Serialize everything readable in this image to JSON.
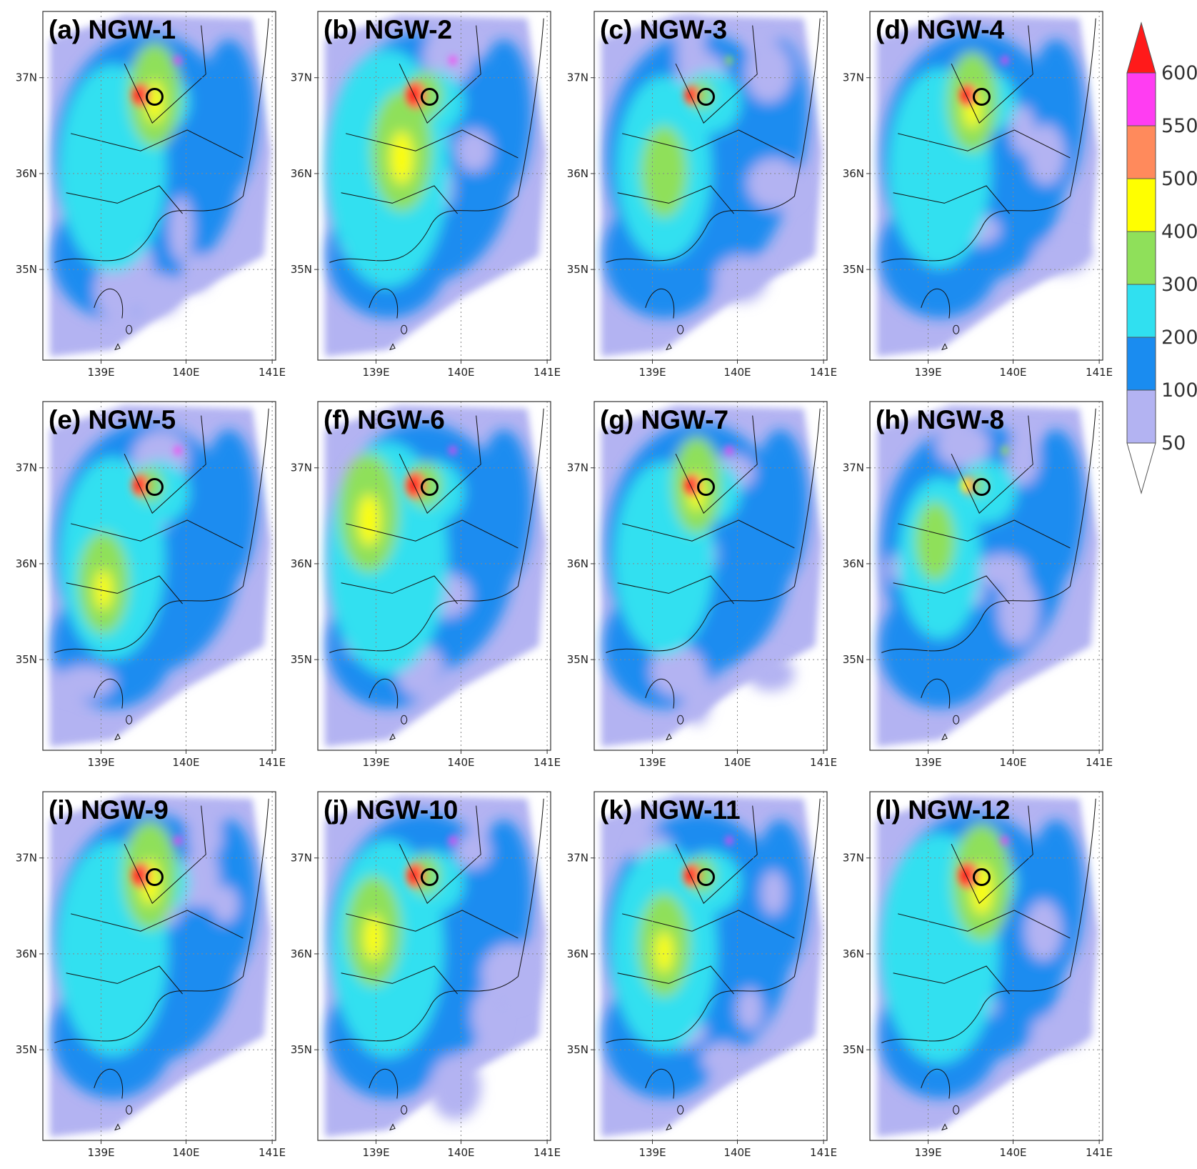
{
  "figure": {
    "panels": [
      {
        "title": "(a) NGW-1",
        "variant": 0,
        "intensity": 0.75,
        "hotspot": [
          0.48,
          0.24
        ]
      },
      {
        "title": "(b) NGW-2",
        "variant": 1,
        "intensity": 0.95,
        "hotspot": [
          0.36,
          0.4
        ]
      },
      {
        "title": "(c) NGW-3",
        "variant": 2,
        "intensity": 0.6,
        "hotspot": [
          0.3,
          0.46
        ]
      },
      {
        "title": "(d) NGW-4",
        "variant": 3,
        "intensity": 0.7,
        "hotspot": [
          0.44,
          0.26
        ]
      },
      {
        "title": "(e) NGW-5",
        "variant": 4,
        "intensity": 0.72,
        "hotspot": [
          0.26,
          0.52
        ]
      },
      {
        "title": "(f) NGW-6",
        "variant": 5,
        "intensity": 0.92,
        "hotspot": [
          0.22,
          0.32
        ]
      },
      {
        "title": "(g) NGW-7",
        "variant": 6,
        "intensity": 0.66,
        "hotspot": [
          0.44,
          0.24
        ]
      },
      {
        "title": "(h) NGW-8",
        "variant": 7,
        "intensity": 0.45,
        "hotspot": [
          0.28,
          0.4
        ]
      },
      {
        "title": "(i) NGW-9",
        "variant": 8,
        "intensity": 0.8,
        "hotspot": [
          0.46,
          0.24
        ]
      },
      {
        "title": "(j) NGW-10",
        "variant": 9,
        "intensity": 0.82,
        "hotspot": [
          0.24,
          0.4
        ]
      },
      {
        "title": "(k) NGW-11",
        "variant": 10,
        "intensity": 0.74,
        "hotspot": [
          0.3,
          0.44
        ]
      },
      {
        "title": "(l) NGW-12",
        "variant": 11,
        "intensity": 0.9,
        "hotspot": [
          0.48,
          0.26
        ]
      }
    ],
    "lat_ticks": [
      "37N",
      "36N",
      "35N"
    ],
    "lon_ticks": [
      "139E",
      "140E",
      "141E"
    ],
    "colorbar": {
      "levels": [
        "600",
        "550",
        "500",
        "400",
        "300",
        "200",
        "100",
        "50"
      ],
      "colors": [
        "#ff1a1a",
        "#ff3df2",
        "#ff8a5c",
        "#ffff00",
        "#8fe05a",
        "#30e0f0",
        "#1a8cf0",
        "#b3b3f2",
        "#ffffff"
      ]
    },
    "marker": "circle"
  }
}
